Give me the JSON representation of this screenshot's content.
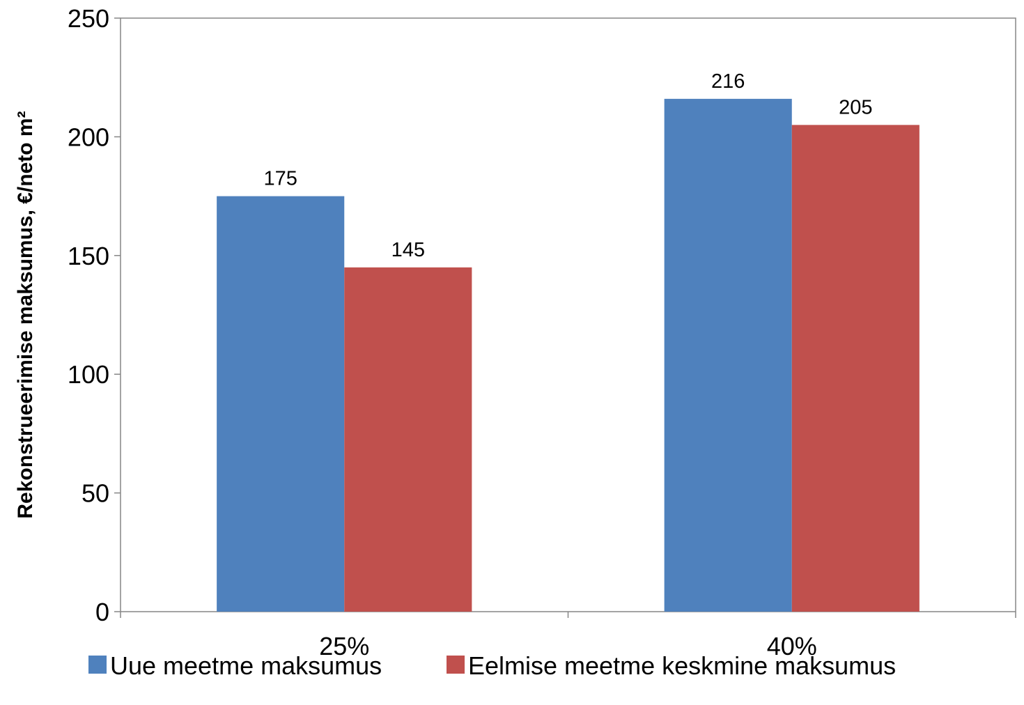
{
  "chart_data": {
    "type": "bar",
    "title": "",
    "xlabel": "",
    "ylabel": "Rekonstrueerimise maksumus, €/neto m²",
    "categories": [
      "25%",
      "40%"
    ],
    "series": [
      {
        "name": "Uue meetme maksumus",
        "color": "#4f81bd",
        "values": [
          175,
          216
        ]
      },
      {
        "name": "Eelmise meetme keskmine maksumus",
        "color": "#c0504d",
        "values": [
          145,
          205
        ]
      }
    ],
    "ylim": [
      0,
      250
    ],
    "yticks": [
      0,
      50,
      100,
      150,
      200,
      250
    ],
    "grid": false,
    "data_labels": true,
    "legend_position": "bottom"
  }
}
